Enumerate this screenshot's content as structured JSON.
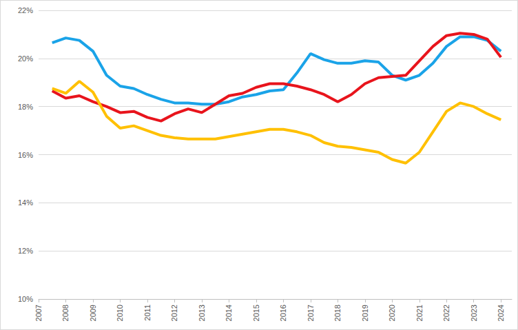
{
  "chart_data": {
    "type": "line",
    "x": [
      2007.5,
      2008.0,
      2008.5,
      2009.0,
      2009.5,
      2010.0,
      2010.5,
      2011.0,
      2011.5,
      2012.0,
      2012.5,
      2013.0,
      2013.5,
      2014.0,
      2014.5,
      2015.0,
      2015.5,
      2016.0,
      2016.5,
      2017.0,
      2017.5,
      2018.0,
      2018.5,
      2019.0,
      2019.5,
      2020.0,
      2020.5,
      2021.0,
      2021.5,
      2022.0,
      2022.5,
      2023.0,
      2023.5,
      2024.0
    ],
    "series": [
      {
        "color": "#1AA3E8",
        "values": [
          20.65,
          20.85,
          20.75,
          20.3,
          19.3,
          18.85,
          18.75,
          18.5,
          18.3,
          18.15,
          18.15,
          18.1,
          18.1,
          18.2,
          18.4,
          18.5,
          18.65,
          18.7,
          19.4,
          20.2,
          19.95,
          19.8,
          19.8,
          19.9,
          19.85,
          19.3,
          19.1,
          19.3,
          19.8,
          20.5,
          20.9,
          20.9,
          20.75,
          20.3
        ]
      },
      {
        "color": "#E8141C",
        "values": [
          18.65,
          18.35,
          18.45,
          18.2,
          18.0,
          17.75,
          17.8,
          17.55,
          17.4,
          17.7,
          17.9,
          17.75,
          18.1,
          18.45,
          18.55,
          18.8,
          18.95,
          18.95,
          18.85,
          18.7,
          18.5,
          18.2,
          18.5,
          18.95,
          19.2,
          19.25,
          19.3,
          19.9,
          20.5,
          20.95,
          21.05,
          21.0,
          20.8,
          20.05
        ]
      },
      {
        "color": "#FFC000",
        "values": [
          18.75,
          18.55,
          19.05,
          18.6,
          17.6,
          17.1,
          17.2,
          17.0,
          16.8,
          16.7,
          16.65,
          16.65,
          16.65,
          16.75,
          16.85,
          16.95,
          17.05,
          17.05,
          16.95,
          16.8,
          16.5,
          16.35,
          16.3,
          16.2,
          16.1,
          15.8,
          15.65,
          16.1,
          16.95,
          17.8,
          18.15,
          18.0,
          17.7,
          17.45
        ]
      }
    ],
    "xlim": [
      2007,
      2024.4
    ],
    "xticks": [
      2007,
      2008,
      2009,
      2010,
      2011,
      2012,
      2013,
      2014,
      2015,
      2016,
      2017,
      2018,
      2019,
      2020,
      2021,
      2022,
      2023,
      2024
    ],
    "ylim": [
      10,
      22
    ],
    "yticks": [
      {
        "value": 10,
        "label": "10%"
      },
      {
        "value": 12,
        "label": "12%"
      },
      {
        "value": 14,
        "label": "14%"
      },
      {
        "value": 16,
        "label": "16%"
      },
      {
        "value": 18,
        "label": "18%"
      },
      {
        "value": 20,
        "label": "20%"
      },
      {
        "value": 22,
        "label": "22%"
      }
    ],
    "grid": true
  }
}
